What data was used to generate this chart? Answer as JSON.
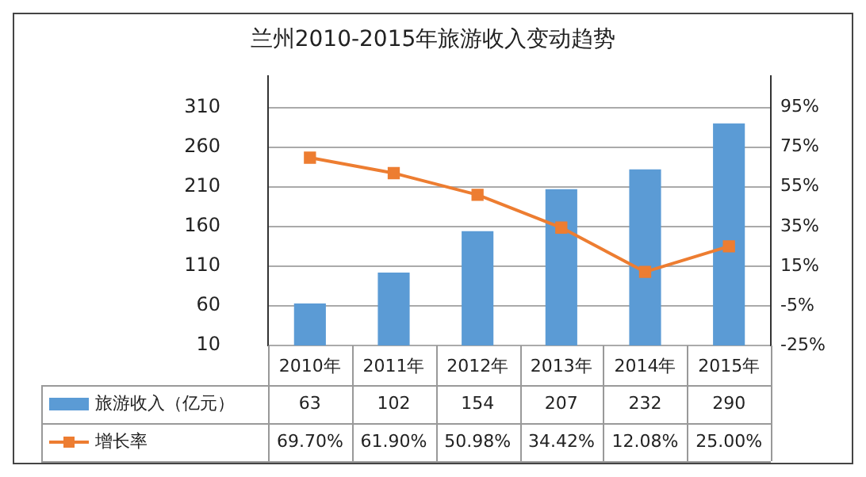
{
  "chart_data": {
    "type": "bar",
    "title": "兰州2010-2015年旅游收入变动趋势",
    "categories": [
      "2010年",
      "2011年",
      "2012年",
      "2013年",
      "2014年",
      "2015年"
    ],
    "series": [
      {
        "name": "旅游收入（亿元）",
        "color": "#5b9bd5",
        "values": [
          63,
          102,
          154,
          207,
          232,
          290
        ],
        "value_labels": [
          "63",
          "102",
          "154",
          "207",
          "232",
          "290"
        ]
      },
      {
        "name": "增长率",
        "type": "line",
        "axis": "y2",
        "color": "#ed7d31",
        "marker": "square",
        "values": [
          69.7,
          61.9,
          50.98,
          34.42,
          12.08,
          25.0
        ],
        "value_labels": [
          "69.70%",
          "61.90%",
          "50.98%",
          "34.42%",
          "12.08%",
          "25.00%"
        ]
      }
    ],
    "ylim": [
      10,
      350
    ],
    "yticks": [
      10,
      60,
      110,
      160,
      210,
      260,
      310
    ],
    "y2lim": [
      -25,
      111
    ],
    "y2ticks": [
      {
        "value": -25,
        "label": "-25%"
      },
      {
        "value": -5,
        "label": "-5%"
      },
      {
        "value": 15,
        "label": "15%"
      },
      {
        "value": 35,
        "label": "35%"
      },
      {
        "value": 55,
        "label": "55%"
      },
      {
        "value": 75,
        "label": "75%"
      },
      {
        "value": 95,
        "label": "95%"
      }
    ],
    "grid": "y",
    "legend": "bottom"
  }
}
